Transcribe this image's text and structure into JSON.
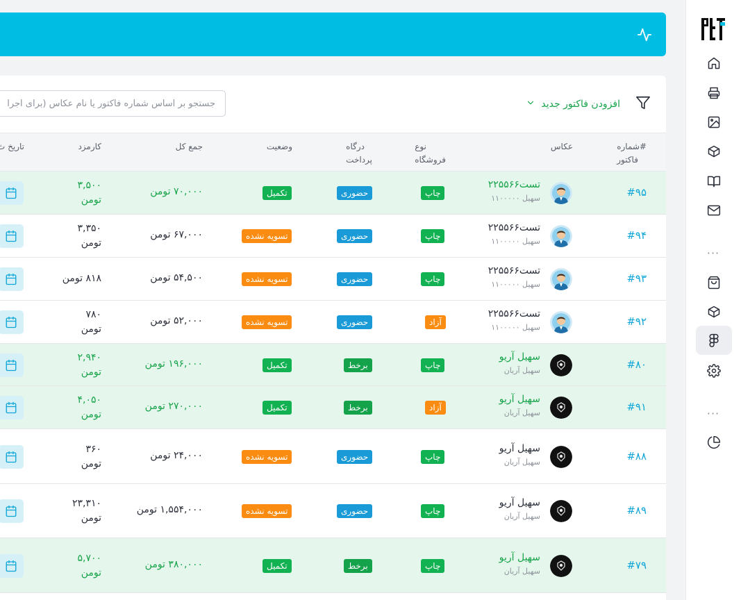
{
  "search": {
    "placeholder": "جستجو بر اساس شماره فاکتور یا نام عکاس (برای اجرا حتما"
  },
  "toolbar": {
    "add_label": "افزودن فاکتور جدید"
  },
  "columns": {
    "number": [
      "#شماره",
      "فاکتور"
    ],
    "photographer": "عکاس",
    "store_type": [
      "نوع",
      "فروشگاه"
    ],
    "gateway": [
      "درگاه",
      "پرداخت"
    ],
    "status": "وضعیت",
    "total": "جمع کل",
    "fee": "کارمزد",
    "date": "تاریخ ث"
  },
  "rows": [
    {
      "number": "#۹۵",
      "name": "تست۲۲۵۵۶۶",
      "sub": "سهیل ۱۱۰۰۰۰۰",
      "avatar": "man",
      "store": "چاپ",
      "store_color": "green",
      "gateway": "حضوری",
      "gateway_color": "blue",
      "status": "تکمیل",
      "status_color": "green",
      "total": "۷۰,۰۰۰ تومن",
      "fee": [
        "۳,۵۰۰",
        "تومن"
      ],
      "paid": true
    },
    {
      "number": "#۹۴",
      "name": "تست۲۲۵۵۶۶",
      "sub": "سهیل ۱۱۰۰۰۰۰",
      "avatar": "man",
      "store": "چاپ",
      "store_color": "green",
      "gateway": "حضوری",
      "gateway_color": "blue",
      "status": "تسویه نشده",
      "status_color": "orange",
      "total": "۶۷,۰۰۰ تومن",
      "fee": [
        "۳,۳۵۰",
        "تومن"
      ],
      "paid": false
    },
    {
      "number": "#۹۳",
      "name": "تست۲۲۵۵۶۶",
      "sub": "سهیل ۱۱۰۰۰۰۰",
      "avatar": "man",
      "store": "چاپ",
      "store_color": "green",
      "gateway": "حضوری",
      "gateway_color": "blue",
      "status": "تسویه نشده",
      "status_color": "orange",
      "total": "۵۴,۵۰۰ تومن",
      "fee": [
        "۸۱۸ تومن"
      ],
      "paid": false
    },
    {
      "number": "#۹۲",
      "name": "تست۲۲۵۵۶۶",
      "sub": "سهیل ۱۱۰۰۰۰۰",
      "avatar": "man",
      "store": "آزاد",
      "store_color": "orange",
      "gateway": "حضوری",
      "gateway_color": "blue",
      "status": "تسویه نشده",
      "status_color": "orange",
      "total": "۵۲,۰۰۰ تومن",
      "fee": [
        "۷۸۰",
        "تومن"
      ],
      "paid": false
    },
    {
      "number": "#۸۰",
      "name": "سهیل آریو",
      "sub": "سهیل آریان",
      "avatar": "dark",
      "store": "چاپ",
      "store_color": "green",
      "gateway": "برخط",
      "gateway_color": "darkgreen",
      "status": "تکمیل",
      "status_color": "green",
      "total": "۱۹۶,۰۰۰ تومن",
      "fee": [
        "۲,۹۴۰",
        "تومن"
      ],
      "paid": true
    },
    {
      "number": "#۹۱",
      "name": "سهیل آریو",
      "sub": "سهیل آریان",
      "avatar": "dark",
      "store": "آزاد",
      "store_color": "orange",
      "gateway": "برخط",
      "gateway_color": "darkgreen",
      "status": "تکمیل",
      "status_color": "green",
      "total": "۲۷۰,۰۰۰ تومن",
      "fee": [
        "۴,۰۵۰",
        "تومن"
      ],
      "paid": true
    },
    {
      "number": "#۸۸",
      "name": "سهیل آریو",
      "sub": "سهیل آریان",
      "avatar": "dark",
      "store": "چاپ",
      "store_color": "green",
      "gateway": "حضوری",
      "gateway_color": "blue",
      "status": "تسویه نشده",
      "status_color": "orange",
      "total": "۲۴,۰۰۰ تومن",
      "fee": [
        "۳۶۰",
        "تومن"
      ],
      "paid": false
    },
    {
      "number": "#۸۹",
      "name": "سهیل آریو",
      "sub": "سهیل آریان",
      "avatar": "dark",
      "store": "چاپ",
      "store_color": "green",
      "gateway": "حضوری",
      "gateway_color": "blue",
      "status": "تسویه نشده",
      "status_color": "orange",
      "total": "۱,۵۵۴,۰۰۰ تومن",
      "fee": [
        "۲۳,۳۱۰",
        "تومن"
      ],
      "paid": false
    },
    {
      "number": "#۷۹",
      "name": "سهیل آریو",
      "sub": "سهیل آریان",
      "avatar": "dark",
      "store": "چاپ",
      "store_color": "green",
      "gateway": "برخط",
      "gateway_color": "darkgreen",
      "status": "تکمیل",
      "status_color": "green",
      "total": "۳۸۰,۰۰۰ تومن",
      "fee": [
        "۵,۷۰۰",
        "تومن"
      ],
      "paid": true
    }
  ],
  "sidebar": {
    "items": [
      {
        "name": "home-icon"
      },
      {
        "name": "printer-icon"
      },
      {
        "name": "image-icon"
      },
      {
        "name": "box-icon"
      },
      {
        "name": "book-icon"
      },
      {
        "name": "mail-icon"
      },
      {
        "name": "shopping-bag-icon"
      },
      {
        "name": "box-icon"
      },
      {
        "name": "figma-icon",
        "active": true
      },
      {
        "name": "gear-icon"
      },
      {
        "name": "pie-chart-icon"
      }
    ]
  },
  "colors": {
    "accent": "#00bde3",
    "paid_row": "#e5f7ec",
    "green": "#12b151",
    "orange": "#fb8c12",
    "blue": "#1a9bd7"
  }
}
